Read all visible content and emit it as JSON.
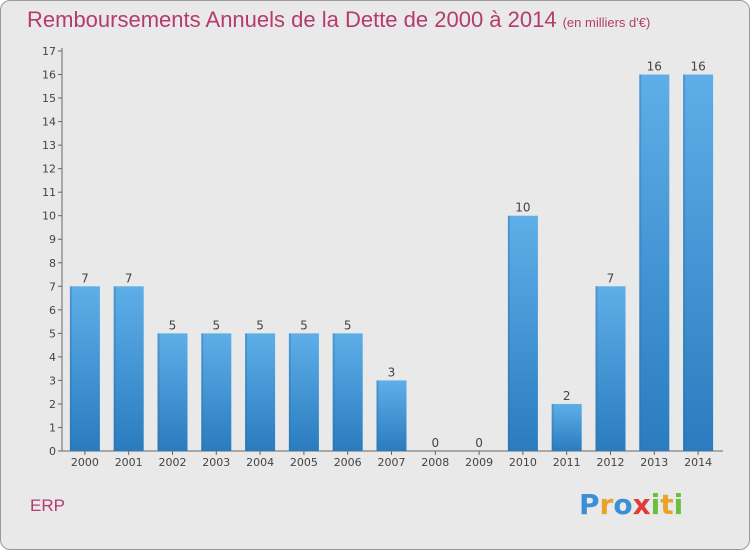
{
  "chart_data": {
    "type": "bar",
    "title": "Remboursements Annuels de la Dette de 2000 à 2014",
    "unit": "(en milliers d'€)",
    "categories": [
      "2000",
      "2001",
      "2002",
      "2003",
      "2004",
      "2005",
      "2006",
      "2007",
      "2008",
      "2009",
      "2010",
      "2011",
      "2012",
      "2013",
      "2014"
    ],
    "values": [
      7,
      7,
      5,
      5,
      5,
      5,
      5,
      3,
      0,
      0,
      10,
      2,
      7,
      16,
      16
    ],
    "ylim": [
      0,
      17
    ],
    "yticks": [
      0,
      1,
      2,
      3,
      4,
      5,
      6,
      7,
      8,
      9,
      10,
      11,
      12,
      13,
      14,
      15,
      16,
      17
    ],
    "grid": false,
    "bar_color_top": "#5eaee8",
    "bar_color_bottom": "#2a7cbf"
  },
  "footer": {
    "label": "ERP",
    "logo_letters": [
      "P",
      "r",
      "o",
      "x",
      "i",
      "t",
      "i"
    ],
    "logo_colors": [
      "#3a8fd6",
      "#e8a32a",
      "#3a8fd6",
      "#e23b3b",
      "#6cbf3a",
      "#e8a32a",
      "#6cbf3a"
    ]
  }
}
